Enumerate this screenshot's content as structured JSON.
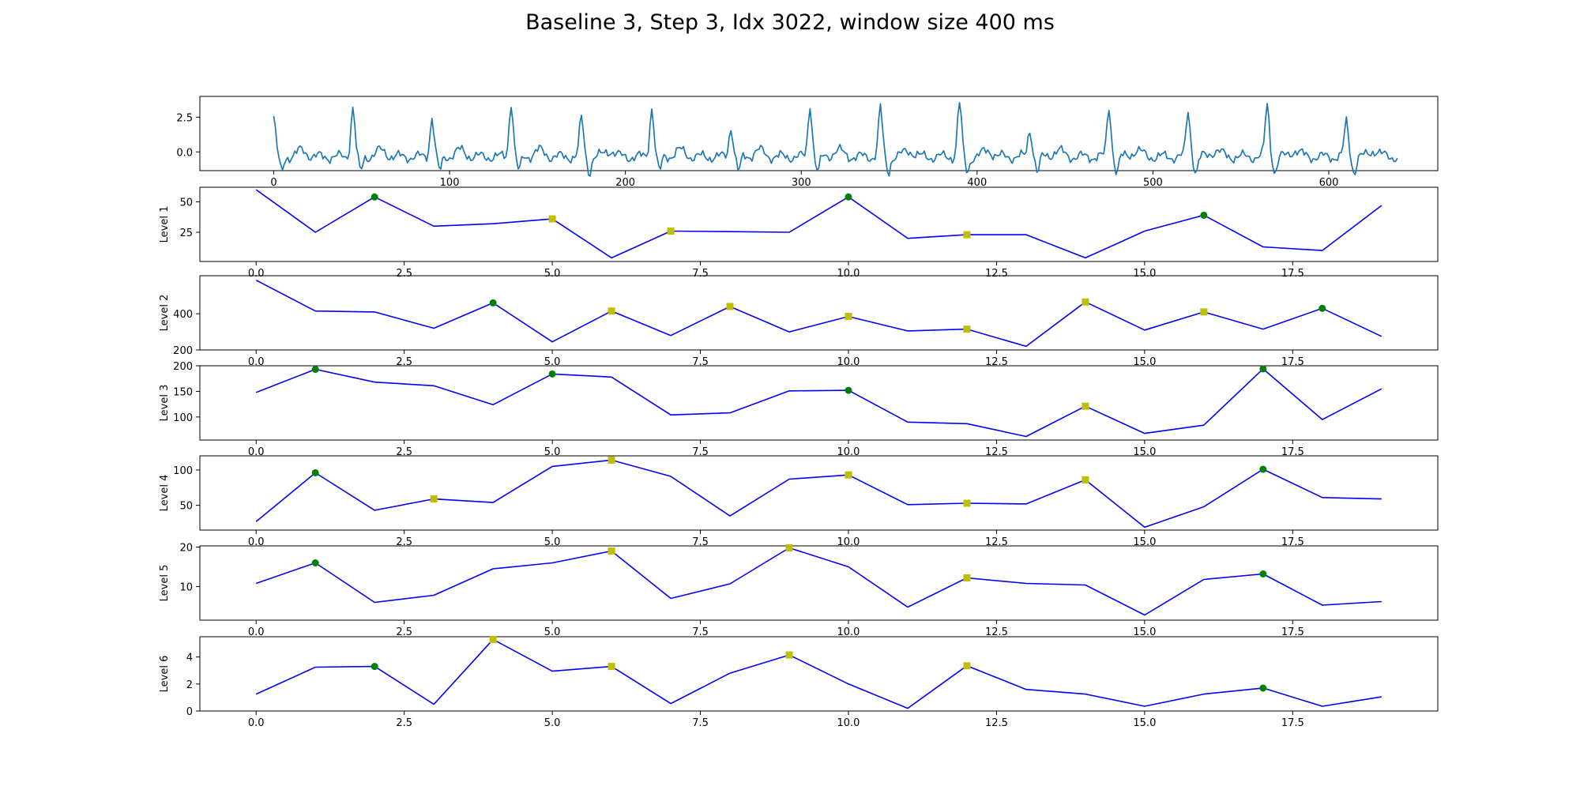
{
  "title": "Baseline 3, Step 3, Idx 3022, window size 400 ms",
  "colors": {
    "signal": "#1f77b4",
    "level_line": "#0000ff",
    "marker_green": "#008000",
    "marker_yellow": "#bfbf00"
  },
  "chart_data": [
    {
      "type": "line",
      "name": "signal",
      "ylabel": "",
      "xlim": [
        -42,
        662
      ],
      "ylim": [
        -1.35,
        4.0
      ],
      "xticks": [
        0,
        100,
        200,
        300,
        400,
        500,
        600
      ],
      "xtick_labels": [
        "0",
        "100",
        "200",
        "300",
        "400",
        "500",
        "600"
      ],
      "yticks": [
        0,
        2.5
      ],
      "ytick_labels": [
        "0.0",
        "2.5"
      ],
      "beats": [
        0,
        45,
        90,
        135,
        175,
        215,
        260,
        305,
        345,
        390,
        430,
        475,
        520,
        565,
        610
      ],
      "beat_heights": [
        2.8,
        3.6,
        2.9,
        4.0,
        2.8,
        3.6,
        2.2,
        3.8,
        3.5,
        3.9,
        2.0,
        3.6,
        3.3,
        3.8,
        2.5
      ],
      "n_points": 640
    },
    {
      "type": "line",
      "ylabel": "Level 1",
      "xlim": [
        -0.95,
        19.95
      ],
      "ylim": [
        1,
        62
      ],
      "xticks": [
        0,
        2.5,
        5,
        7.5,
        10,
        12.5,
        15,
        17.5
      ],
      "xtick_labels": [
        "0.0",
        "2.5",
        "5.0",
        "7.5",
        "10.0",
        "12.5",
        "15.0",
        "17.5"
      ],
      "yticks": [
        25,
        50
      ],
      "ytick_labels": [
        "25",
        "50"
      ],
      "x": [
        0,
        1,
        2,
        3,
        4,
        5,
        6,
        7,
        8,
        9,
        10,
        11,
        12,
        13,
        14,
        15,
        16,
        17,
        18,
        19
      ],
      "y": [
        60,
        25,
        54,
        30,
        32,
        36,
        4,
        26,
        25.5,
        25,
        54,
        20,
        23,
        23,
        4,
        26,
        39,
        13,
        10,
        47
      ],
      "green_markers": [
        2,
        10,
        16
      ],
      "yellow_markers": [
        5,
        7,
        12
      ]
    },
    {
      "type": "line",
      "ylabel": "Level 2",
      "xlim": [
        -0.95,
        19.95
      ],
      "ylim": [
        200,
        610
      ],
      "xticks": [
        0,
        2.5,
        5,
        7.5,
        10,
        12.5,
        15,
        17.5
      ],
      "xtick_labels": [
        "0.0",
        "2.5",
        "5.0",
        "7.5",
        "10.0",
        "12.5",
        "15.0",
        "17.5"
      ],
      "yticks": [
        200,
        400
      ],
      "ytick_labels": [
        "200",
        "400"
      ],
      "x": [
        0,
        1,
        2,
        3,
        4,
        5,
        6,
        7,
        8,
        9,
        10,
        11,
        12,
        13,
        14,
        15,
        16,
        17,
        18,
        19
      ],
      "y": [
        585,
        415,
        410,
        320,
        460,
        245,
        415,
        280,
        440,
        300,
        385,
        305,
        315,
        220,
        465,
        310,
        410,
        315,
        430,
        275
      ],
      "green_markers": [
        4,
        18
      ],
      "yellow_markers": [
        6,
        8,
        10,
        12,
        14,
        16
      ]
    },
    {
      "type": "line",
      "ylabel": "Level 3",
      "xlim": [
        -0.95,
        19.95
      ],
      "ylim": [
        55,
        200
      ],
      "xticks": [
        0,
        2.5,
        5,
        7.5,
        10,
        12.5,
        15,
        17.5
      ],
      "xtick_labels": [
        "0.0",
        "2.5",
        "5.0",
        "7.5",
        "10.0",
        "12.5",
        "15.0",
        "17.5"
      ],
      "yticks": [
        100,
        150,
        200
      ],
      "ytick_labels": [
        "100",
        "150",
        "200"
      ],
      "x": [
        0,
        1,
        2,
        3,
        4,
        5,
        6,
        7,
        8,
        9,
        10,
        11,
        12,
        13,
        14,
        15,
        16,
        17,
        18,
        19
      ],
      "y": [
        148,
        193,
        168,
        161,
        124,
        184,
        178,
        104,
        108,
        151,
        152,
        90,
        87,
        62,
        121,
        68,
        84,
        194,
        95,
        155
      ],
      "green_markers": [
        1,
        5,
        10,
        17
      ],
      "yellow_markers": [
        14
      ]
    },
    {
      "type": "line",
      "ylabel": "Level 4",
      "xlim": [
        -0.95,
        19.95
      ],
      "ylim": [
        15,
        120
      ],
      "xticks": [
        0,
        2.5,
        5,
        7.5,
        10,
        12.5,
        15,
        17.5
      ],
      "xtick_labels": [
        "0.0",
        "2.5",
        "5.0",
        "7.5",
        "10.0",
        "12.5",
        "15.0",
        "17.5"
      ],
      "yticks": [
        50,
        100
      ],
      "ytick_labels": [
        "50",
        "100"
      ],
      "x": [
        0,
        1,
        2,
        3,
        4,
        5,
        6,
        7,
        8,
        9,
        10,
        11,
        12,
        13,
        14,
        15,
        16,
        17,
        18,
        19
      ],
      "y": [
        27,
        96,
        43,
        59,
        54,
        105,
        114,
        91,
        35,
        87,
        93,
        51,
        53,
        52,
        86,
        19,
        48,
        101,
        61,
        59
      ],
      "green_markers": [
        1,
        17
      ],
      "yellow_markers": [
        3,
        6,
        10,
        12,
        14
      ]
    },
    {
      "type": "line",
      "ylabel": "Level 5",
      "xlim": [
        -0.95,
        19.95
      ],
      "ylim": [
        1.5,
        20.3
      ],
      "xticks": [
        0,
        2.5,
        5,
        7.5,
        10,
        12.5,
        15,
        17.5
      ],
      "xtick_labels": [
        "0.0",
        "2.5",
        "5.0",
        "7.5",
        "10.0",
        "12.5",
        "15.0",
        "17.5"
      ],
      "yticks": [
        10,
        20
      ],
      "ytick_labels": [
        "10",
        "20"
      ],
      "x": [
        0,
        1,
        2,
        3,
        4,
        5,
        6,
        7,
        8,
        9,
        10,
        11,
        12,
        13,
        14,
        15,
        16,
        17,
        18,
        19
      ],
      "y": [
        10.8,
        16,
        6,
        7.8,
        14.5,
        16,
        19,
        7,
        10.7,
        19.8,
        15,
        4.8,
        12.2,
        10.8,
        10.4,
        2.8,
        11.8,
        13.2,
        5.3,
        6.2
      ],
      "green_markers": [
        1,
        17
      ],
      "yellow_markers": [
        6,
        9,
        12
      ]
    },
    {
      "type": "line",
      "ylabel": "Level 6",
      "xlim": [
        -0.95,
        19.95
      ],
      "ylim": [
        0,
        5.5
      ],
      "xticks": [
        0,
        2.5,
        5,
        7.5,
        10,
        12.5,
        15,
        17.5
      ],
      "xtick_labels": [
        "0.0",
        "2.5",
        "5.0",
        "7.5",
        "10.0",
        "12.5",
        "15.0",
        "17.5"
      ],
      "yticks": [
        0,
        2,
        4
      ],
      "ytick_labels": [
        "0",
        "2",
        "4"
      ],
      "x": [
        0,
        1,
        2,
        3,
        4,
        5,
        6,
        7,
        8,
        9,
        10,
        11,
        12,
        13,
        14,
        15,
        16,
        17,
        18,
        19
      ],
      "y": [
        1.25,
        3.25,
        3.3,
        0.5,
        5.3,
        2.95,
        3.3,
        0.55,
        2.8,
        4.15,
        2.0,
        0.2,
        3.35,
        1.6,
        1.25,
        0.35,
        1.25,
        1.7,
        0.35,
        1.05
      ],
      "green_markers": [
        2,
        17
      ],
      "yellow_markers": [
        4,
        6,
        9,
        12
      ]
    }
  ]
}
